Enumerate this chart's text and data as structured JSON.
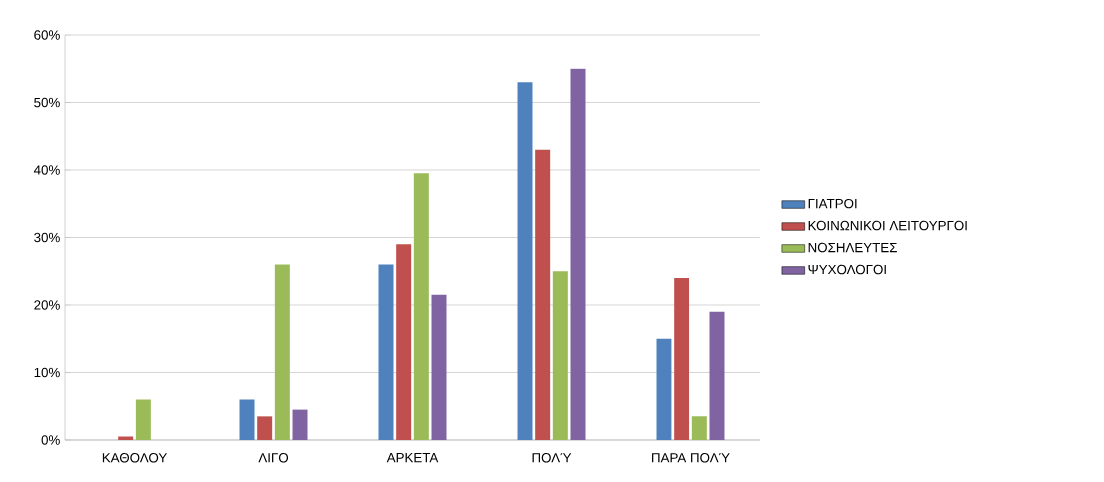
{
  "chart_data": {
    "type": "bar",
    "categories": [
      "ΚΑΘΟΛΟΥ",
      "ΛΙΓΟ",
      "ΑΡΚΕΤΑ",
      "ΠΟΛΎ",
      "ΠΑΡΑ ΠΟΛΎ"
    ],
    "series": [
      {
        "name": "ΓΙΑΤΡΟΙ",
        "color": "#4f81bd",
        "values": [
          0,
          6,
          26,
          53,
          15
        ]
      },
      {
        "name": "ΚΟΙΝΩΝΙΚΟΙ ΛΕΙΤΟΥΡΓΟΙ",
        "color": "#c0504d",
        "values": [
          0.5,
          3.5,
          29,
          43,
          24
        ]
      },
      {
        "name": "ΝΟΣΗΛΕΥΤΕΣ",
        "color": "#9bbb59",
        "values": [
          6,
          26,
          39.5,
          25,
          3.5
        ]
      },
      {
        "name": "ΨΥΧΟΛΟΓΟΙ",
        "color": "#8064a2",
        "values": [
          0,
          4.5,
          21.5,
          55,
          19
        ]
      }
    ],
    "ylim": [
      0,
      60
    ],
    "yticks": [
      {
        "value": 0,
        "label": "0%"
      },
      {
        "value": 10,
        "label": "10%"
      },
      {
        "value": 20,
        "label": "20%"
      },
      {
        "value": 30,
        "label": "30%"
      },
      {
        "value": 40,
        "label": "40%"
      },
      {
        "value": 50,
        "label": "50%"
      },
      {
        "value": 60,
        "label": "60%"
      }
    ],
    "grid": "y",
    "legend": "right"
  }
}
